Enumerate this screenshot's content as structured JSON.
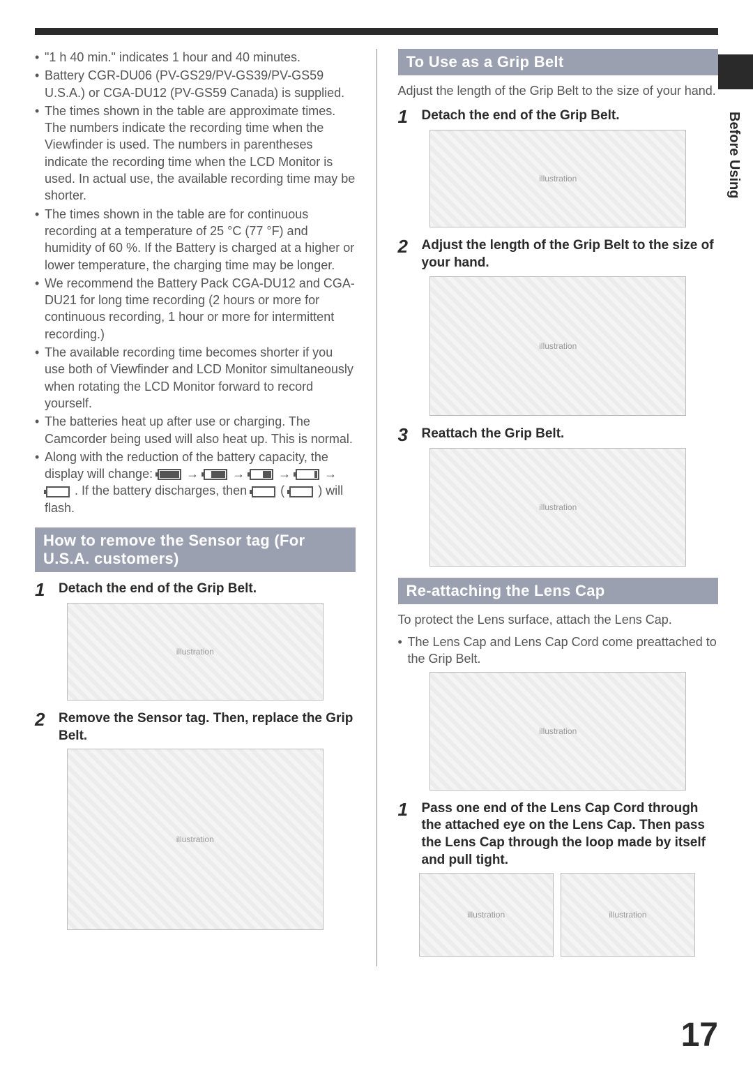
{
  "sideTab": "Before Using",
  "pageNumber": "17",
  "left": {
    "bullets": [
      "\"1 h 40 min.\" indicates 1 hour and 40 minutes.",
      "Battery CGR-DU06 (PV-GS29/PV-GS39/PV-GS59 U.S.A.) or CGA-DU12 (PV-GS59 Canada) is supplied.",
      "The times shown in the table are approximate times. The numbers indicate the recording time when the Viewfinder is used. The numbers in parentheses indicate the recording time when the LCD Monitor is used. In actual use, the available recording time may be shorter.",
      "The times shown in the table are for continuous recording at a temperature of 25 °C (77 °F) and humidity of 60 %. If the Battery is charged at a higher or lower temperature, the charging time may be longer.",
      "We recommend the Battery Pack CGA-DU12 and CGA-DU21 for long time recording (2 hours or more for continuous recording, 1 hour or more for intermittent recording.)",
      "The available recording time becomes shorter if you use both of Viewfinder and LCD Monitor simultaneously when rotating the LCD Monitor forward to record yourself.",
      "The batteries heat up after use or charging. The Camcorder being used will also heat up. This is normal."
    ],
    "batteryLine_a": "Along with the reduction of the battery capacity, the display will change: ",
    "batteryLine_b": ". If the battery discharges, then ",
    "batteryLine_c": " ( ",
    "batteryLine_d": " ) will flash.",
    "sectionHeader": "How to remove the Sensor tag (For U.S.A. customers)",
    "steps": [
      {
        "num": "1",
        "text": "Detach the end of the Grip Belt."
      },
      {
        "num": "2",
        "text": "Remove the Sensor tag. Then, replace the Grip Belt."
      }
    ]
  },
  "right": {
    "sectionA": {
      "header": "To Use as a Grip Belt",
      "intro": "Adjust the length of the Grip Belt to the size of your hand.",
      "steps": [
        {
          "num": "1",
          "text": "Detach the end of the Grip Belt."
        },
        {
          "num": "2",
          "text": "Adjust the length of the Grip Belt to the size of your hand."
        },
        {
          "num": "3",
          "text": "Reattach the Grip Belt."
        }
      ]
    },
    "sectionB": {
      "header": "Re-attaching the Lens Cap",
      "intro": "To protect the Lens surface, attach the Lens Cap.",
      "bullet": "The Lens Cap and Lens Cap Cord come preattached to the Grip Belt.",
      "steps": [
        {
          "num": "1",
          "text": "Pass one end of the Lens Cap Cord through the attached eye on the Lens Cap. Then pass the Lens Cap through the loop made by itself and pull tight."
        }
      ]
    }
  }
}
